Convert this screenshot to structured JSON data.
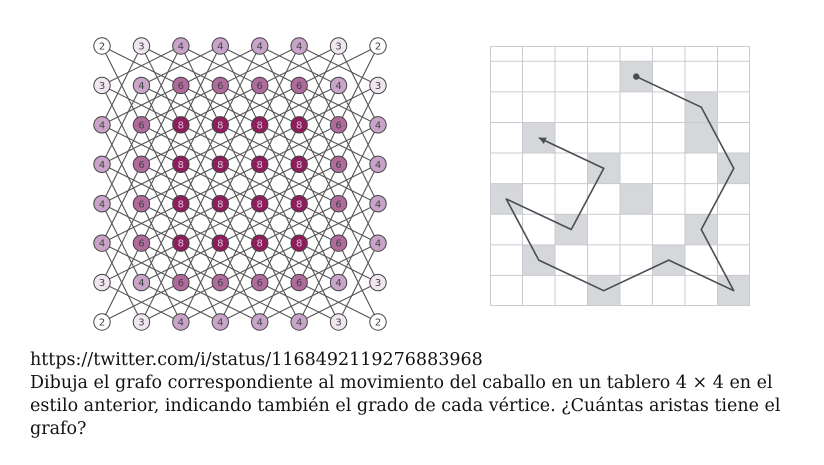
{
  "figure_left": {
    "board_size": 8,
    "degrees": [
      [
        2,
        3,
        4,
        4,
        4,
        4,
        3,
        2
      ],
      [
        3,
        4,
        6,
        6,
        6,
        6,
        4,
        3
      ],
      [
        4,
        6,
        8,
        8,
        8,
        8,
        6,
        4
      ],
      [
        4,
        6,
        8,
        8,
        8,
        8,
        6,
        4
      ],
      [
        4,
        6,
        8,
        8,
        8,
        8,
        6,
        4
      ],
      [
        4,
        6,
        8,
        8,
        8,
        8,
        6,
        4
      ],
      [
        3,
        4,
        6,
        6,
        6,
        6,
        4,
        3
      ],
      [
        2,
        3,
        4,
        4,
        4,
        4,
        3,
        2
      ]
    ],
    "colors": {
      "2": "#ffffff",
      "3": "#efe6f0",
      "4": "#c8a5c8",
      "6": "#b06a9c",
      "8": "#8e1d5d",
      "edge": "#555555",
      "node_stroke": "#444444"
    }
  },
  "figure_right": {
    "board_size": 8,
    "shaded_cells": [
      [
        4,
        1
      ],
      [
        6,
        2
      ],
      [
        6,
        3
      ],
      [
        1,
        3
      ],
      [
        3,
        4
      ],
      [
        7,
        4
      ],
      [
        0,
        5
      ],
      [
        4,
        5
      ],
      [
        2,
        6
      ],
      [
        6,
        6
      ],
      [
        1,
        7
      ],
      [
        5,
        7
      ],
      [
        3,
        8
      ],
      [
        7,
        8
      ]
    ],
    "path": [
      [
        4,
        1
      ],
      [
        6,
        2
      ],
      [
        7,
        4
      ],
      [
        6,
        6
      ],
      [
        7,
        8
      ],
      [
        5,
        7
      ],
      [
        3,
        8
      ],
      [
        1,
        7
      ],
      [
        0,
        5
      ],
      [
        2,
        6
      ],
      [
        3,
        4
      ],
      [
        1,
        3
      ]
    ],
    "colors": {
      "shade": "#d5d7db",
      "grid": "#c9cbd0",
      "path": "#4a4d52"
    }
  },
  "text": {
    "url": "https://twitter.com/i/status/1168492119276883968",
    "prompt": "Dibuja el grafo correspondiente al movimiento del caballo en un tablero 4 × 4 en el estilo anterior, indicando también el grado de cada vértice. ¿Cuántas aristas tiene el grafo?"
  }
}
